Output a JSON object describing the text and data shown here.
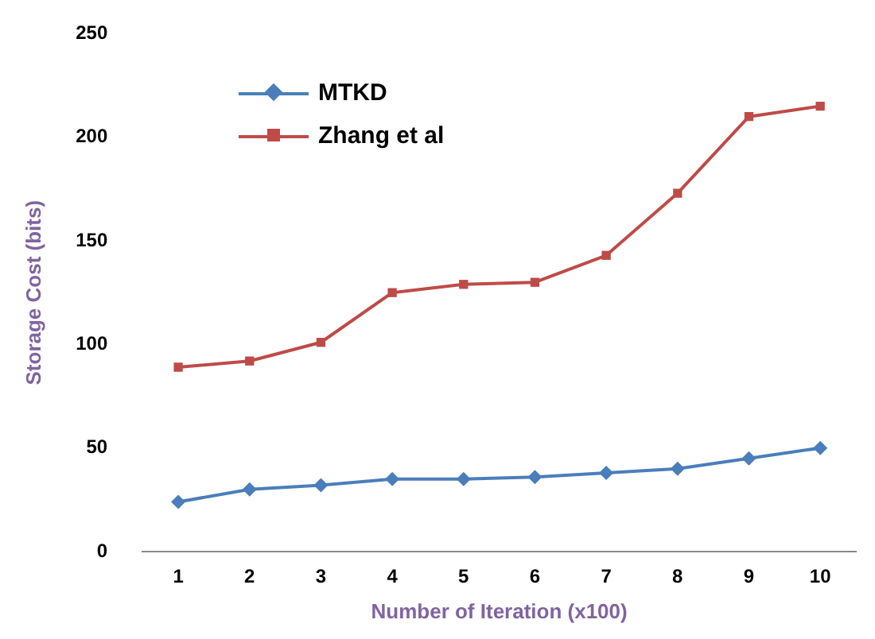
{
  "chart_data": {
    "type": "line",
    "xlabel": "Number of Iteration (x100)",
    "ylabel": "Storage Cost (bits)",
    "categories": [
      "1",
      "2",
      "3",
      "4",
      "5",
      "6",
      "7",
      "8",
      "9",
      "10"
    ],
    "series": [
      {
        "name": "MTKD",
        "color": "#4a7ebb",
        "marker": "diamond",
        "values": [
          24,
          30,
          32,
          35,
          35,
          36,
          38,
          40,
          45,
          50
        ]
      },
      {
        "name": "Zhang et al",
        "color": "#be4b48",
        "marker": "square",
        "values": [
          89,
          92,
          101,
          125,
          129,
          130,
          143,
          173,
          210,
          215
        ]
      }
    ],
    "ylim": [
      0,
      250
    ],
    "yticks": [
      0,
      50,
      100,
      150,
      200,
      250
    ],
    "grid": false,
    "legend": "top left"
  }
}
